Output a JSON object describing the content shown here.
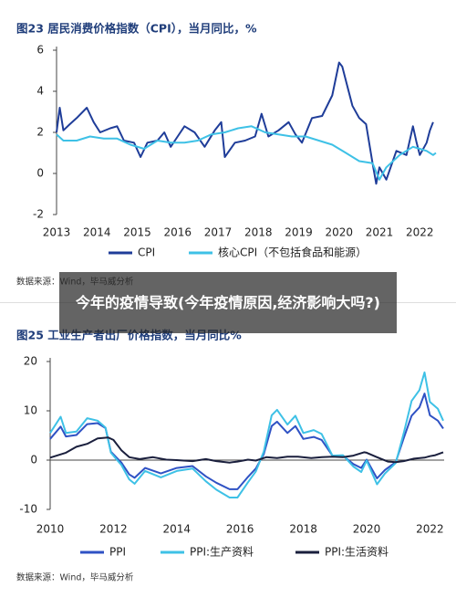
{
  "chart_data": [
    {
      "type": "line",
      "title": "图23 居民消费价格指数（CPI），当月同比，%",
      "source": "数据来源：Wind，毕马威分析",
      "xlim": [
        2013,
        2022.4
      ],
      "xticks": [
        2013,
        2014,
        2015,
        2016,
        2017,
        2018,
        2019,
        2020,
        2021,
        2022
      ],
      "ylim": [
        -2,
        6
      ],
      "yticks": [
        -2,
        0,
        2,
        4,
        6
      ],
      "grid": false,
      "zero_line": false,
      "legend": "bottom",
      "series": [
        {
          "name": "CPI",
          "color": "#1f3d99",
          "x": [
            2013.0,
            2013.08,
            2013.17,
            2013.33,
            2013.5,
            2013.75,
            2013.92,
            2014.08,
            2014.33,
            2014.5,
            2014.67,
            2014.92,
            2015.08,
            2015.25,
            2015.5,
            2015.67,
            2015.83,
            2016.0,
            2016.17,
            2016.42,
            2016.67,
            2016.92,
            2017.08,
            2017.17,
            2017.42,
            2017.67,
            2017.92,
            2018.08,
            2018.25,
            2018.5,
            2018.75,
            2018.92,
            2019.08,
            2019.33,
            2019.58,
            2019.83,
            2020.0,
            2020.08,
            2020.33,
            2020.5,
            2020.67,
            2020.83,
            2020.92,
            2021.0,
            2021.17,
            2021.42,
            2021.67,
            2021.83,
            2021.92,
            2022.0,
            2022.17,
            2022.25,
            2022.33
          ],
          "values": [
            2.0,
            3.2,
            2.1,
            2.4,
            2.7,
            3.2,
            2.5,
            2.0,
            2.2,
            2.3,
            1.6,
            1.5,
            0.8,
            1.5,
            1.6,
            2.0,
            1.3,
            1.8,
            2.3,
            2.0,
            1.3,
            2.1,
            2.5,
            0.8,
            1.5,
            1.6,
            1.8,
            2.9,
            1.8,
            2.1,
            2.5,
            1.9,
            1.5,
            2.7,
            2.8,
            3.8,
            5.4,
            5.2,
            3.3,
            2.7,
            2.4,
            0.5,
            -0.5,
            0.3,
            -0.3,
            1.1,
            0.9,
            2.3,
            1.5,
            0.9,
            1.5,
            2.1,
            2.5
          ]
        },
        {
          "name": "核心CPI（不包括食品和能源）",
          "color": "#3ec1e6",
          "x": [
            2013.0,
            2013.17,
            2013.5,
            2013.83,
            2014.17,
            2014.5,
            2014.83,
            2015.17,
            2015.5,
            2015.83,
            2016.17,
            2016.5,
            2016.83,
            2017.17,
            2017.5,
            2017.83,
            2018.17,
            2018.5,
            2018.83,
            2019.17,
            2019.5,
            2019.83,
            2020.17,
            2020.5,
            2020.83,
            2021.0,
            2021.17,
            2021.5,
            2021.83,
            2022.0,
            2022.17,
            2022.33,
            2022.4
          ],
          "values": [
            1.9,
            1.6,
            1.6,
            1.8,
            1.7,
            1.7,
            1.4,
            1.2,
            1.6,
            1.5,
            1.5,
            1.6,
            1.9,
            2.0,
            2.2,
            2.3,
            2.0,
            1.9,
            1.8,
            1.8,
            1.6,
            1.4,
            1.0,
            0.6,
            0.5,
            -0.3,
            0.3,
            0.9,
            1.3,
            1.2,
            1.1,
            0.9,
            1.0
          ]
        }
      ]
    },
    {
      "type": "line",
      "title": "图25 工业生产者出厂价格指数，当月同比%",
      "source": "数据来源：Wind，毕马威分析",
      "xlim": [
        2010,
        2022.45
      ],
      "xticks": [
        2010,
        2012,
        2014,
        2016,
        2018,
        2020,
        2022
      ],
      "ylim": [
        -10,
        20
      ],
      "yticks": [
        -10,
        0,
        10,
        20
      ],
      "grid": false,
      "zero_line": true,
      "legend": "bottom",
      "series": [
        {
          "name": "PPI",
          "color": "#2f52c4",
          "x": [
            2010.0,
            2010.33,
            2010.5,
            2010.83,
            2011.17,
            2011.5,
            2011.75,
            2011.92,
            2012.25,
            2012.5,
            2012.67,
            2013.0,
            2013.5,
            2014.0,
            2014.5,
            2014.92,
            2015.25,
            2015.67,
            2015.92,
            2016.25,
            2016.5,
            2016.75,
            2017.0,
            2017.17,
            2017.5,
            2017.75,
            2018.0,
            2018.33,
            2018.58,
            2018.92,
            2019.25,
            2019.58,
            2019.83,
            2020.0,
            2020.33,
            2020.58,
            2020.92,
            2021.17,
            2021.42,
            2021.67,
            2021.83,
            2022.0,
            2022.25,
            2022.42
          ],
          "values": [
            4.3,
            6.8,
            4.8,
            5.1,
            7.3,
            7.5,
            6.5,
            1.7,
            -0.5,
            -2.9,
            -3.6,
            -1.6,
            -2.7,
            -1.6,
            -1.2,
            -3.3,
            -4.6,
            -5.9,
            -5.9,
            -3.4,
            -1.7,
            1.2,
            6.9,
            7.8,
            5.5,
            6.9,
            4.3,
            4.7,
            4.1,
            0.9,
            0.9,
            -0.8,
            -1.6,
            0.1,
            -3.7,
            -2.0,
            -0.4,
            4.4,
            9.0,
            10.7,
            13.5,
            9.1,
            8.0,
            6.4
          ]
        },
        {
          "name": "PPI:生产资料",
          "color": "#3ec1e6",
          "x": [
            2010.0,
            2010.33,
            2010.5,
            2010.83,
            2011.17,
            2011.5,
            2011.75,
            2011.92,
            2012.25,
            2012.5,
            2012.67,
            2013.0,
            2013.5,
            2014.0,
            2014.5,
            2014.92,
            2015.25,
            2015.67,
            2015.92,
            2016.25,
            2016.5,
            2016.75,
            2017.0,
            2017.17,
            2017.5,
            2017.75,
            2018.0,
            2018.33,
            2018.58,
            2018.92,
            2019.25,
            2019.58,
            2019.83,
            2020.0,
            2020.33,
            2020.58,
            2020.92,
            2021.17,
            2021.42,
            2021.67,
            2021.83,
            2022.0,
            2022.25,
            2022.42
          ],
          "values": [
            5.5,
            8.8,
            5.5,
            5.8,
            8.5,
            8.0,
            6.6,
            1.5,
            -1.0,
            -3.9,
            -4.8,
            -2.2,
            -3.5,
            -2.2,
            -1.7,
            -4.3,
            -6.0,
            -7.6,
            -7.6,
            -4.5,
            -2.3,
            1.7,
            9.1,
            10.2,
            7.2,
            9.0,
            5.5,
            6.1,
            5.3,
            0.9,
            1.0,
            -1.3,
            -2.4,
            -0.1,
            -4.9,
            -2.7,
            -0.6,
            5.4,
            12.0,
            14.2,
            17.8,
            11.8,
            10.4,
            8.0
          ]
        },
        {
          "name": "PPI:生活资料",
          "color": "#1a1f3d",
          "x": [
            2010.0,
            2010.5,
            2010.83,
            2011.17,
            2011.5,
            2011.83,
            2012.0,
            2012.25,
            2012.5,
            2012.83,
            2013.25,
            2013.67,
            2014.0,
            2014.5,
            2014.92,
            2015.25,
            2015.67,
            2015.92,
            2016.25,
            2016.5,
            2016.83,
            2017.17,
            2017.5,
            2017.83,
            2018.25,
            2018.58,
            2018.92,
            2019.25,
            2019.58,
            2019.92,
            2020.0,
            2020.33,
            2020.67,
            2020.92,
            2021.17,
            2021.5,
            2021.83,
            2022.0,
            2022.17,
            2022.42
          ],
          "values": [
            0.5,
            1.5,
            2.7,
            3.3,
            4.4,
            4.6,
            4.1,
            2.0,
            0.6,
            0.2,
            0.6,
            0.1,
            0.0,
            -0.2,
            0.2,
            -0.2,
            -0.5,
            -0.3,
            0.1,
            -0.1,
            0.6,
            0.4,
            0.7,
            0.7,
            0.4,
            0.6,
            0.7,
            0.6,
            0.9,
            1.6,
            1.5,
            0.6,
            -0.3,
            -0.4,
            -0.2,
            0.3,
            0.5,
            0.8,
            1.0,
            1.6
          ]
        }
      ]
    }
  ],
  "caption": "今年的疫情导致(今年疫情原因,经济影响大吗?)"
}
